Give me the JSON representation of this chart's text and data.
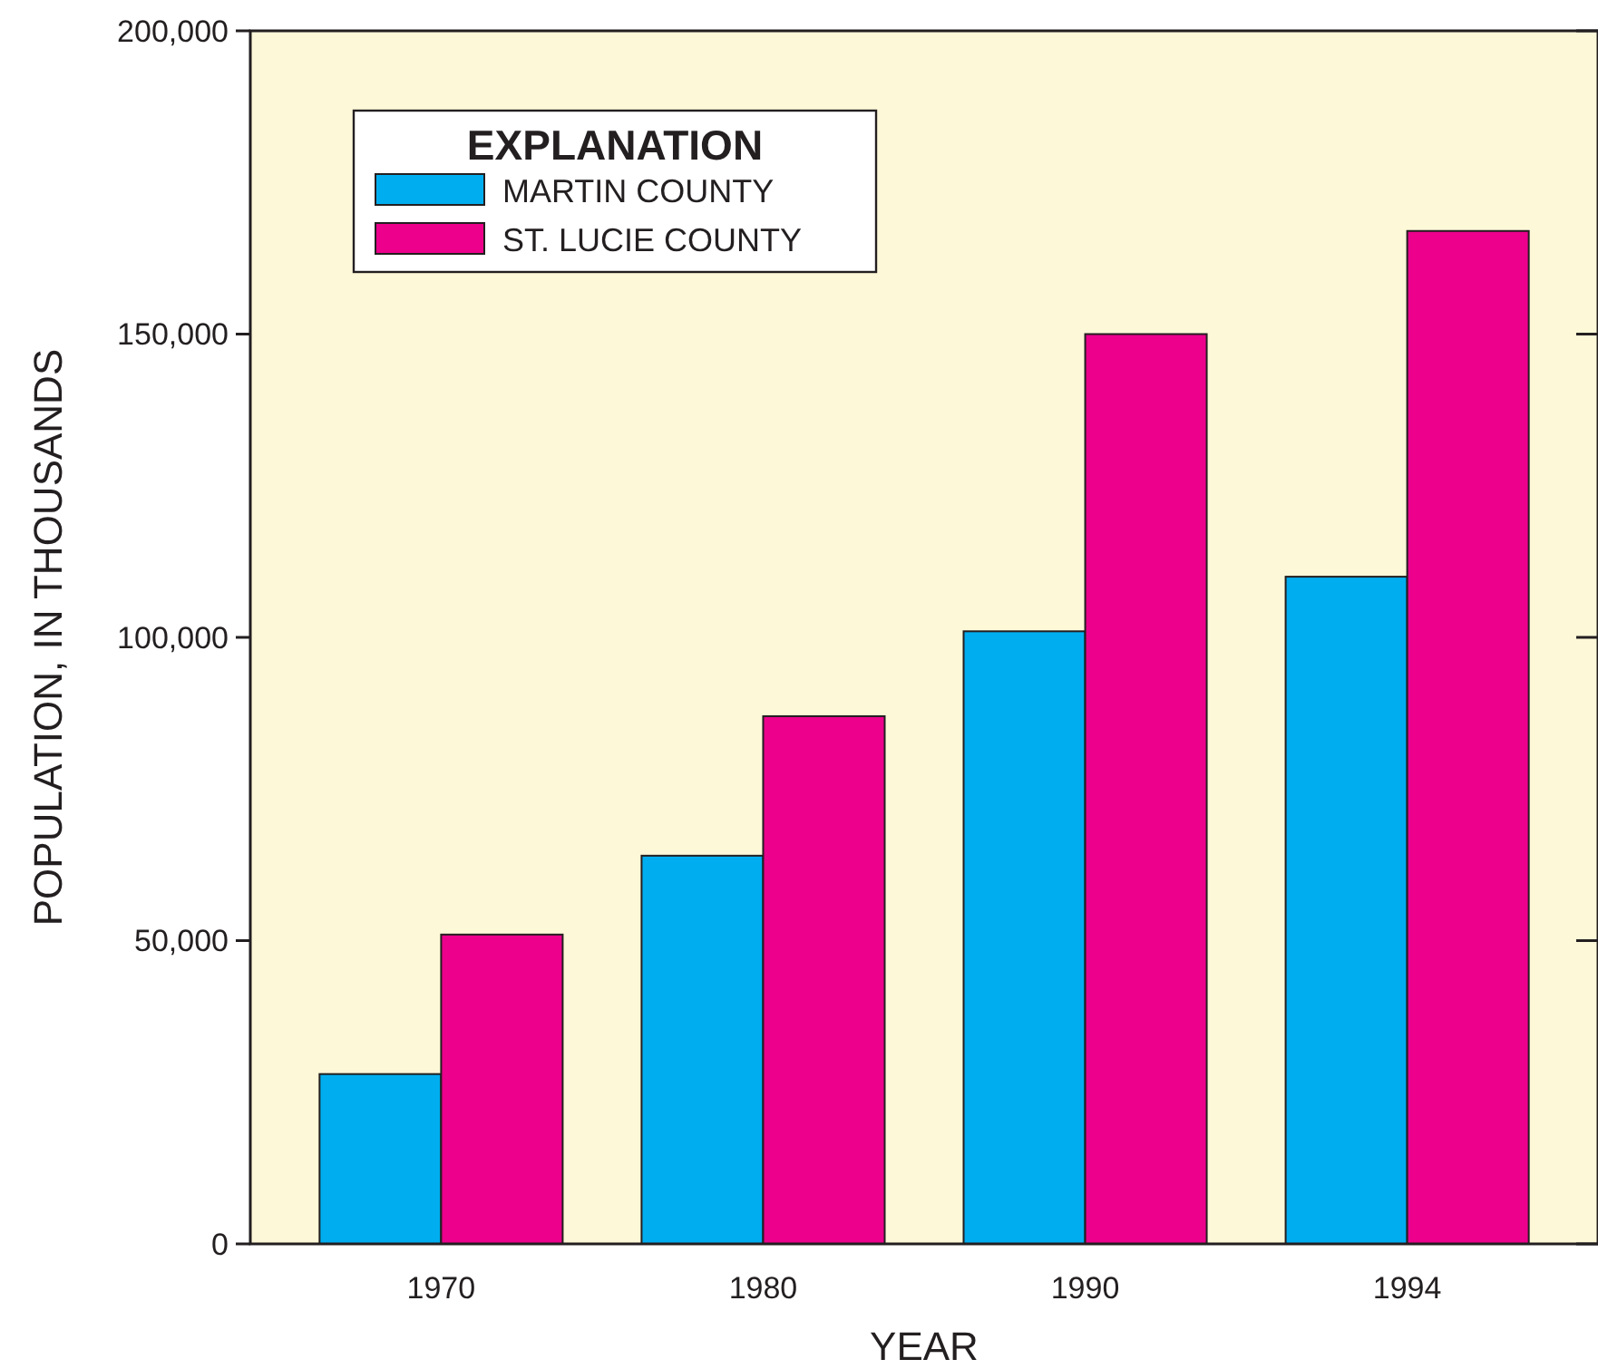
{
  "chart_data": {
    "type": "bar",
    "xlabel": "YEAR",
    "ylabel": "POPULATION, IN THOUSANDS",
    "legend_title": "EXPLANATION",
    "categories": [
      "1970",
      "1980",
      "1990",
      "1994"
    ],
    "series": [
      {
        "name": "MARTIN COUNTY",
        "color": "#00aeef",
        "values": [
          28000,
          64000,
          101000,
          110000
        ]
      },
      {
        "name": "ST. LUCIE COUNTY",
        "color": "#ec008c",
        "values": [
          51000,
          87000,
          150000,
          167000
        ]
      }
    ],
    "ylim": [
      0,
      200000
    ],
    "yticks": [
      {
        "value": 0,
        "label": "0"
      },
      {
        "value": 50000,
        "label": "50,000"
      },
      {
        "value": 100000,
        "label": "100,000"
      },
      {
        "value": 150000,
        "label": "150,000"
      },
      {
        "value": 200000,
        "label": "200,000"
      }
    ],
    "grid": false,
    "legend": "top left"
  }
}
